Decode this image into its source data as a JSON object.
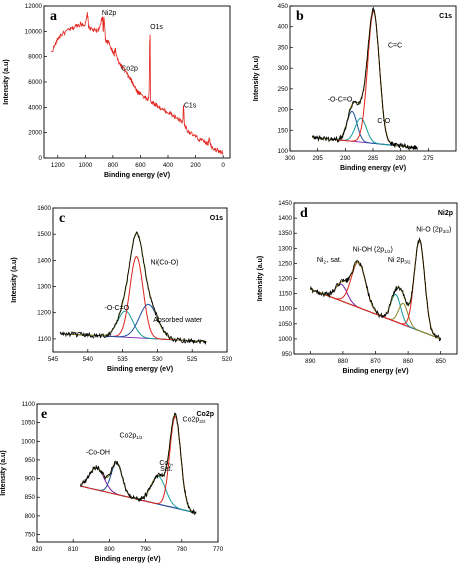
{
  "chart_data": [
    {
      "id": "a",
      "type": "line",
      "panel_label": "a",
      "panel_tag": "",
      "xlabel": "Binding energy (eV)",
      "ylabel": "Intensity (a.u)",
      "xlim": [
        1300,
        -50
      ],
      "ylim": [
        0,
        12000
      ],
      "x_ticks": [
        "1200",
        "1000",
        "800",
        "600",
        "400",
        "200",
        "0"
      ],
      "y_ticks": [
        "0",
        "2000",
        "4000",
        "6000",
        "8000",
        "10000",
        "12000"
      ],
      "annotations": [
        {
          "text": "Ni2p",
          "sub": "",
          "x": 880,
          "y": 11300
        },
        {
          "text": "Co2p",
          "sub": "",
          "x": 740,
          "y": 6900
        },
        {
          "text": "O1s",
          "sub": "",
          "x": 530,
          "y": 10200
        },
        {
          "text": "C1s",
          "sub": "",
          "x": 285,
          "y": 4000
        }
      ],
      "series": [
        {
          "color": "#e0231c",
          "noisy": true,
          "x": [
            1250,
            1220,
            1200,
            1180,
            1150,
            1120,
            1100,
            1080,
            1060,
            1040,
            1020,
            1000,
            985,
            975,
            960,
            940,
            920,
            900,
            875,
            870,
            865,
            855,
            850,
            830,
            810,
            800,
            790,
            782,
            778,
            770,
            760,
            740,
            720,
            700,
            690,
            680,
            670,
            660,
            650,
            640,
            630,
            620,
            600,
            580,
            560,
            545,
            537,
            533,
            530,
            527,
            520,
            500,
            480,
            460,
            440,
            420,
            400,
            380,
            360,
            340,
            320,
            300,
            292,
            288,
            285,
            282,
            278,
            260,
            240,
            220,
            200,
            180,
            160,
            140,
            120,
            110,
            100,
            90,
            80,
            60,
            40,
            20,
            0
          ],
          "y": [
            8300,
            8900,
            9400,
            9700,
            9900,
            10100,
            10200,
            10300,
            10500,
            10550,
            10600,
            10500,
            11400,
            10300,
            10200,
            10100,
            10000,
            10200,
            11200,
            9800,
            11300,
            9500,
            9200,
            9100,
            8600,
            8400,
            8200,
            8700,
            8300,
            7900,
            7600,
            7300,
            7000,
            6700,
            6500,
            6300,
            6200,
            6000,
            5800,
            5600,
            5400,
            5200,
            5100,
            4900,
            4700,
            4600,
            5000,
            9000,
            9700,
            4600,
            4400,
            4300,
            4150,
            4000,
            3800,
            3700,
            3600,
            3500,
            3300,
            3200,
            3000,
            2800,
            2900,
            4100,
            3800,
            2700,
            2600,
            2200,
            2000,
            1800,
            1700,
            1500,
            1400,
            1300,
            1200,
            1100,
            1700,
            1000,
            900,
            700,
            600,
            500,
            400
          ]
        }
      ]
    },
    {
      "id": "b",
      "type": "line",
      "panel_label": "b",
      "panel_tag": "C1s",
      "xlabel": "Binding energy (eV)",
      "ylabel": "Intensity (a.u)",
      "xlim": [
        300,
        270
      ],
      "ylim": [
        100,
        450
      ],
      "x_ticks": [
        "300",
        "295",
        "290",
        "285",
        "280",
        "275"
      ],
      "y_ticks": [
        "100",
        "150",
        "200",
        "250",
        "300",
        "350",
        "400",
        "450"
      ],
      "annotations": [
        {
          "text": "C=C",
          "sub": "",
          "x": 282.3,
          "y": 350
        },
        {
          "text": "-O-C=O",
          "sub": "",
          "x": 293.2,
          "y": 220
        },
        {
          "text": "C-O",
          "sub": "",
          "x": 284.2,
          "y": 168
        }
      ],
      "background": {
        "x1": 296,
        "y1": 133,
        "x2": 277,
        "y2": 108,
        "color": "#7b1fa2"
      },
      "peaks": [
        {
          "center": 288.8,
          "height": 72,
          "width": 0.9,
          "color": "#1f4fa0"
        },
        {
          "center": 287.2,
          "height": 58,
          "width": 1.0,
          "color": "#159a9c"
        },
        {
          "center": 284.9,
          "height": 318,
          "width": 1.05,
          "color": "#e0231c"
        }
      ],
      "envelope_color": "#8a8a2a",
      "raw_color": "#000000"
    },
    {
      "id": "c",
      "type": "line",
      "panel_label": "c",
      "panel_tag": "O1s",
      "xlabel": "Binding energy (eV)",
      "ylabel": "Intensity (a.u)",
      "xlim": [
        545,
        520
      ],
      "ylim": [
        1050,
        1600
      ],
      "x_ticks": [
        "545",
        "540",
        "535",
        "530",
        "525",
        "520"
      ],
      "y_ticks": [
        "1100",
        "1200",
        "1300",
        "1400",
        "1500",
        "1600"
      ],
      "annotations": [
        {
          "text": "Ni(Co-O)",
          "sub": "",
          "x": 531.0,
          "y": 1385
        },
        {
          "text": "-O-C=O",
          "sub": "",
          "x": 537.6,
          "y": 1210
        },
        {
          "text": "Absorbed water",
          "sub": "",
          "x": 530.6,
          "y": 1165
        }
      ],
      "background": {
        "x1": 544,
        "y1": 1120,
        "x2": 523,
        "y2": 1090,
        "color": "#7b1fa2"
      },
      "peaks": [
        {
          "center": 534.6,
          "height": 100,
          "width": 1.1,
          "color": "#159a9c"
        },
        {
          "center": 533.0,
          "height": 310,
          "width": 0.95,
          "color": "#e0231c"
        },
        {
          "center": 531.3,
          "height": 130,
          "width": 1.3,
          "color": "#1f4fa0"
        }
      ],
      "envelope_color": "#8a8a2a",
      "raw_color": "#000000"
    },
    {
      "id": "d",
      "type": "line",
      "panel_label": "d",
      "panel_tag": "Ni2p",
      "xlabel": "Binding energy (eV)",
      "ylabel": "Intensity (a.u)",
      "xlim": [
        895,
        845
      ],
      "ylim": [
        950,
        1450
      ],
      "x_ticks": [
        "890",
        "880",
        "870",
        "860",
        "850"
      ],
      "y_ticks": [
        "950",
        "1000",
        "1050",
        "1100",
        "1150",
        "1200",
        "1250",
        "1300",
        "1350",
        "1400",
        "1450"
      ],
      "annotations": [
        {
          "text": "Ni",
          "sub": "2+",
          "tail": " sat.",
          "x": 888.0,
          "y": 1255
        },
        {
          "text": "Ni-OH (2p",
          "sub": "1/2",
          "tail": ")",
          "x": 877.0,
          "y": 1290
        },
        {
          "text": "Ni 2p",
          "sub": "3/2",
          "tail": "",
          "x": 866.2,
          "y": 1255
        },
        {
          "text": "Ni-O (2p",
          "sub": "3/2",
          "tail": ")",
          "x": 857.5,
          "y": 1355
        }
      ],
      "background": {
        "x1": 890,
        "y1": 1165,
        "x2": 850,
        "y2": 1000,
        "color": "#1f4fa0"
      },
      "peaks": [
        {
          "center": 880.5,
          "height": 55,
          "width": 1.8,
          "color": "#7b1fa2"
        },
        {
          "center": 875.2,
          "height": 150,
          "width": 2.2,
          "color": "#e0231c"
        },
        {
          "center": 863.8,
          "height": 90,
          "width": 1.5,
          "color": "#159a9c"
        },
        {
          "center": 861.5,
          "height": 70,
          "width": 1.4,
          "color": "#8a8a2a"
        },
        {
          "center": 856.5,
          "height": 300,
          "width": 1.6,
          "color": "#e0231c"
        }
      ],
      "envelope_color": "#8a8a2a",
      "raw_color": "#000000"
    },
    {
      "id": "e",
      "type": "line",
      "panel_label": "e",
      "panel_tag": "Co2p",
      "xlabel": "Binding energy (eV)",
      "ylabel": "Intensity (a.u)",
      "xlim": [
        820,
        770
      ],
      "ylim": [
        730,
        1100
      ],
      "x_ticks": [
        "820",
        "810",
        "800",
        "790",
        "780",
        "770"
      ],
      "y_ticks": [
        "750",
        "800",
        "850",
        "900",
        "950",
        "1000",
        "1050",
        "1100"
      ],
      "annotations": [
        {
          "text": "-Co-OH",
          "sub": "",
          "tail": "",
          "x": 806.5,
          "y": 965
        },
        {
          "text": "Co2p",
          "sub": "1/2",
          "tail": "",
          "x": 797.2,
          "y": 1010
        },
        {
          "text": "Co2p",
          "sub": "3/2",
          "tail": "",
          "x": 779.8,
          "y": 1053
        },
        {
          "text": "Co",
          "sub": "3+",
          "tail": "",
          "x": 786.2,
          "y": 937
        },
        {
          "text": "Sat.",
          "sub": "",
          "tail": "",
          "x": 786.0,
          "y": 920
        }
      ],
      "background": {
        "x1": 808,
        "y1": 880,
        "x2": 776,
        "y2": 808,
        "color": "#6a9c2a"
      },
      "peaks": [
        {
          "center": 803.5,
          "height": 60,
          "width": 2.0,
          "color": "#7b1fa2"
        },
        {
          "center": 798.0,
          "height": 85,
          "width": 1.5,
          "color": "#1f4fa0"
        },
        {
          "center": 786.5,
          "height": 75,
          "width": 2.0,
          "color": "#159a9c"
        },
        {
          "center": 781.8,
          "height": 245,
          "width": 1.5,
          "color": "#e0231c"
        }
      ],
      "envelope_color": "#8a8a2a",
      "raw_color": "#000000"
    }
  ]
}
